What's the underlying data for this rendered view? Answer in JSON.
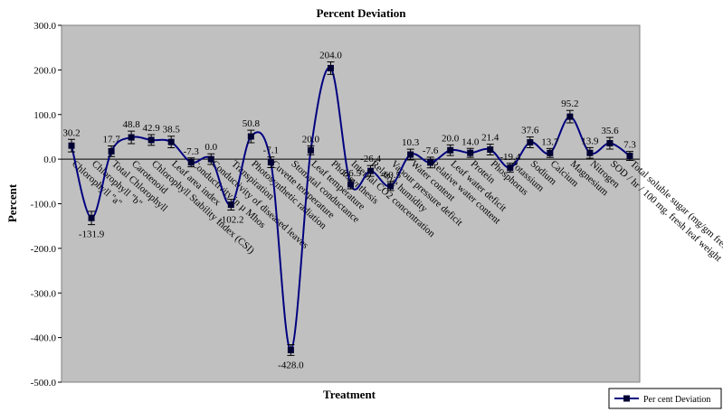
{
  "chart_data": {
    "type": "line",
    "title": "Percent Deviation",
    "x_label": "Treatment",
    "y_label": "Percent",
    "categories": [
      "Chlorophyll \"a\"",
      "Chlorophyll \"b\"",
      "Total Chlorophyll",
      "Carotenoid",
      "Chlorophyll Stability Index (CSI)",
      "Leaf area index",
      "Conductivity in µ Mhos",
      "Conductivity of diseased leaves",
      "Transpiration",
      "Photosynthetic radiation",
      "Cuvette temperature",
      "Stomatal conductance",
      "Leaf temperature",
      "Photosynthesis",
      "Internal CO2 concentration",
      "Relative humidity",
      "Vapour pressure deficit",
      "Water content",
      "Relative water content",
      "Leaf water deficit",
      "Protein",
      "Phosphorus",
      "Potassium",
      "Sodium",
      "Calcium",
      "Magnesium",
      "Nitrogen",
      "SOD / hr / 100 mg. fresh leaf weight",
      "Total soluble sugar (mg/gm fresh wt.)"
    ],
    "series": [
      {
        "name": "Per cent Deviation",
        "color": "#000080",
        "values": [
          30.2,
          -131.9,
          17.7,
          48.8,
          42.9,
          38.5,
          -7.3,
          0.0,
          -102.2,
          50.8,
          -7.1,
          -428.0,
          20.0,
          204.0,
          -56.5,
          -26.4,
          -60.5,
          10.3,
          -7.6,
          20.0,
          14.0,
          21.4,
          -19.4,
          37.6,
          13.7,
          95.2,
          13.9,
          35.6,
          7.3
        ],
        "value_labels": [
          "30.2",
          "-131.9",
          "17.7",
          "48.8",
          "42.9",
          "38.5",
          "-7.3",
          "0.0",
          "-102.2",
          "50.8",
          "-7.1",
          "-428.0",
          "20.0",
          "204.0",
          "-56.5",
          "-26.4",
          "-60.5",
          "10.3",
          "-7.6",
          "20.0",
          "14.0",
          "21.4",
          "-19.4",
          "37.6",
          "13.7",
          "95.2",
          "13.9",
          "35.6",
          "7.3"
        ],
        "errors": [
          14,
          15,
          12,
          14,
          12,
          13,
          10,
          12,
          12,
          14,
          12,
          12,
          10,
          14,
          10,
          12,
          10,
          12,
          12,
          12,
          10,
          12,
          10,
          12,
          10,
          14,
          12,
          13,
          10
        ]
      }
    ],
    "ylim": [
      -500,
      300
    ],
    "yticks": [
      {
        "value": -500,
        "label": "-500.0"
      },
      {
        "value": -400,
        "label": "-400.0"
      },
      {
        "value": -300,
        "label": "-300.0"
      },
      {
        "value": -200,
        "label": "-200.0"
      },
      {
        "value": -100,
        "label": "-100.0"
      },
      {
        "value": 0,
        "label": "0.0"
      },
      {
        "value": 100,
        "label": "100.0"
      },
      {
        "value": 200,
        "label": "200.0"
      },
      {
        "value": 300,
        "label": "300.0"
      }
    ],
    "legend": "bottom-right"
  }
}
